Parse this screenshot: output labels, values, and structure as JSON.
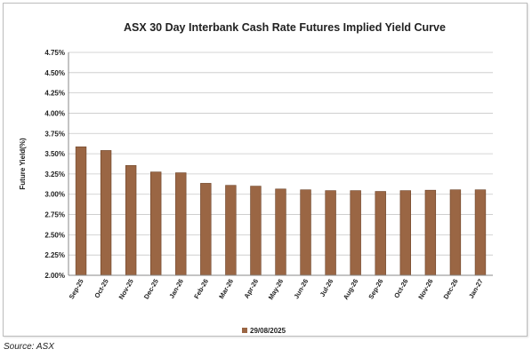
{
  "source_note": "Source: ASX",
  "colors": {
    "bar": "#9a6644",
    "bar_edge": "#6e4429",
    "grid": "#c8c8c8",
    "axis": "#888888",
    "text": "#222222"
  },
  "chart_data": {
    "type": "bar",
    "title": "ASX 30 Day Interbank Cash Rate Futures Implied Yield Curve",
    "xlabel": "",
    "ylabel": "Future Yield(%)",
    "categories": [
      "Sep-25",
      "Oct-25",
      "Nov-25",
      "Dec-25",
      "Jan-26",
      "Feb-26",
      "Mar-26",
      "Apr-26",
      "May-26",
      "Jun-26",
      "Jul-26",
      "Aug-26",
      "Sep-26",
      "Oct-26",
      "Nov-26",
      "Dec-26",
      "Jan-27"
    ],
    "series": [
      {
        "name": "29/08/2025",
        "values": [
          3.585,
          3.54,
          3.355,
          3.275,
          3.265,
          3.135,
          3.11,
          3.1,
          3.065,
          3.055,
          3.045,
          3.045,
          3.035,
          3.045,
          3.05,
          3.055,
          3.055
        ]
      }
    ],
    "ylim": [
      2.0,
      4.75
    ],
    "y_ticks": [
      "2.00%",
      "2.25%",
      "2.50%",
      "2.75%",
      "3.00%",
      "3.25%",
      "3.50%",
      "3.75%",
      "4.00%",
      "4.25%",
      "4.50%",
      "4.75%"
    ],
    "grid": true,
    "legend_position": "bottom"
  }
}
